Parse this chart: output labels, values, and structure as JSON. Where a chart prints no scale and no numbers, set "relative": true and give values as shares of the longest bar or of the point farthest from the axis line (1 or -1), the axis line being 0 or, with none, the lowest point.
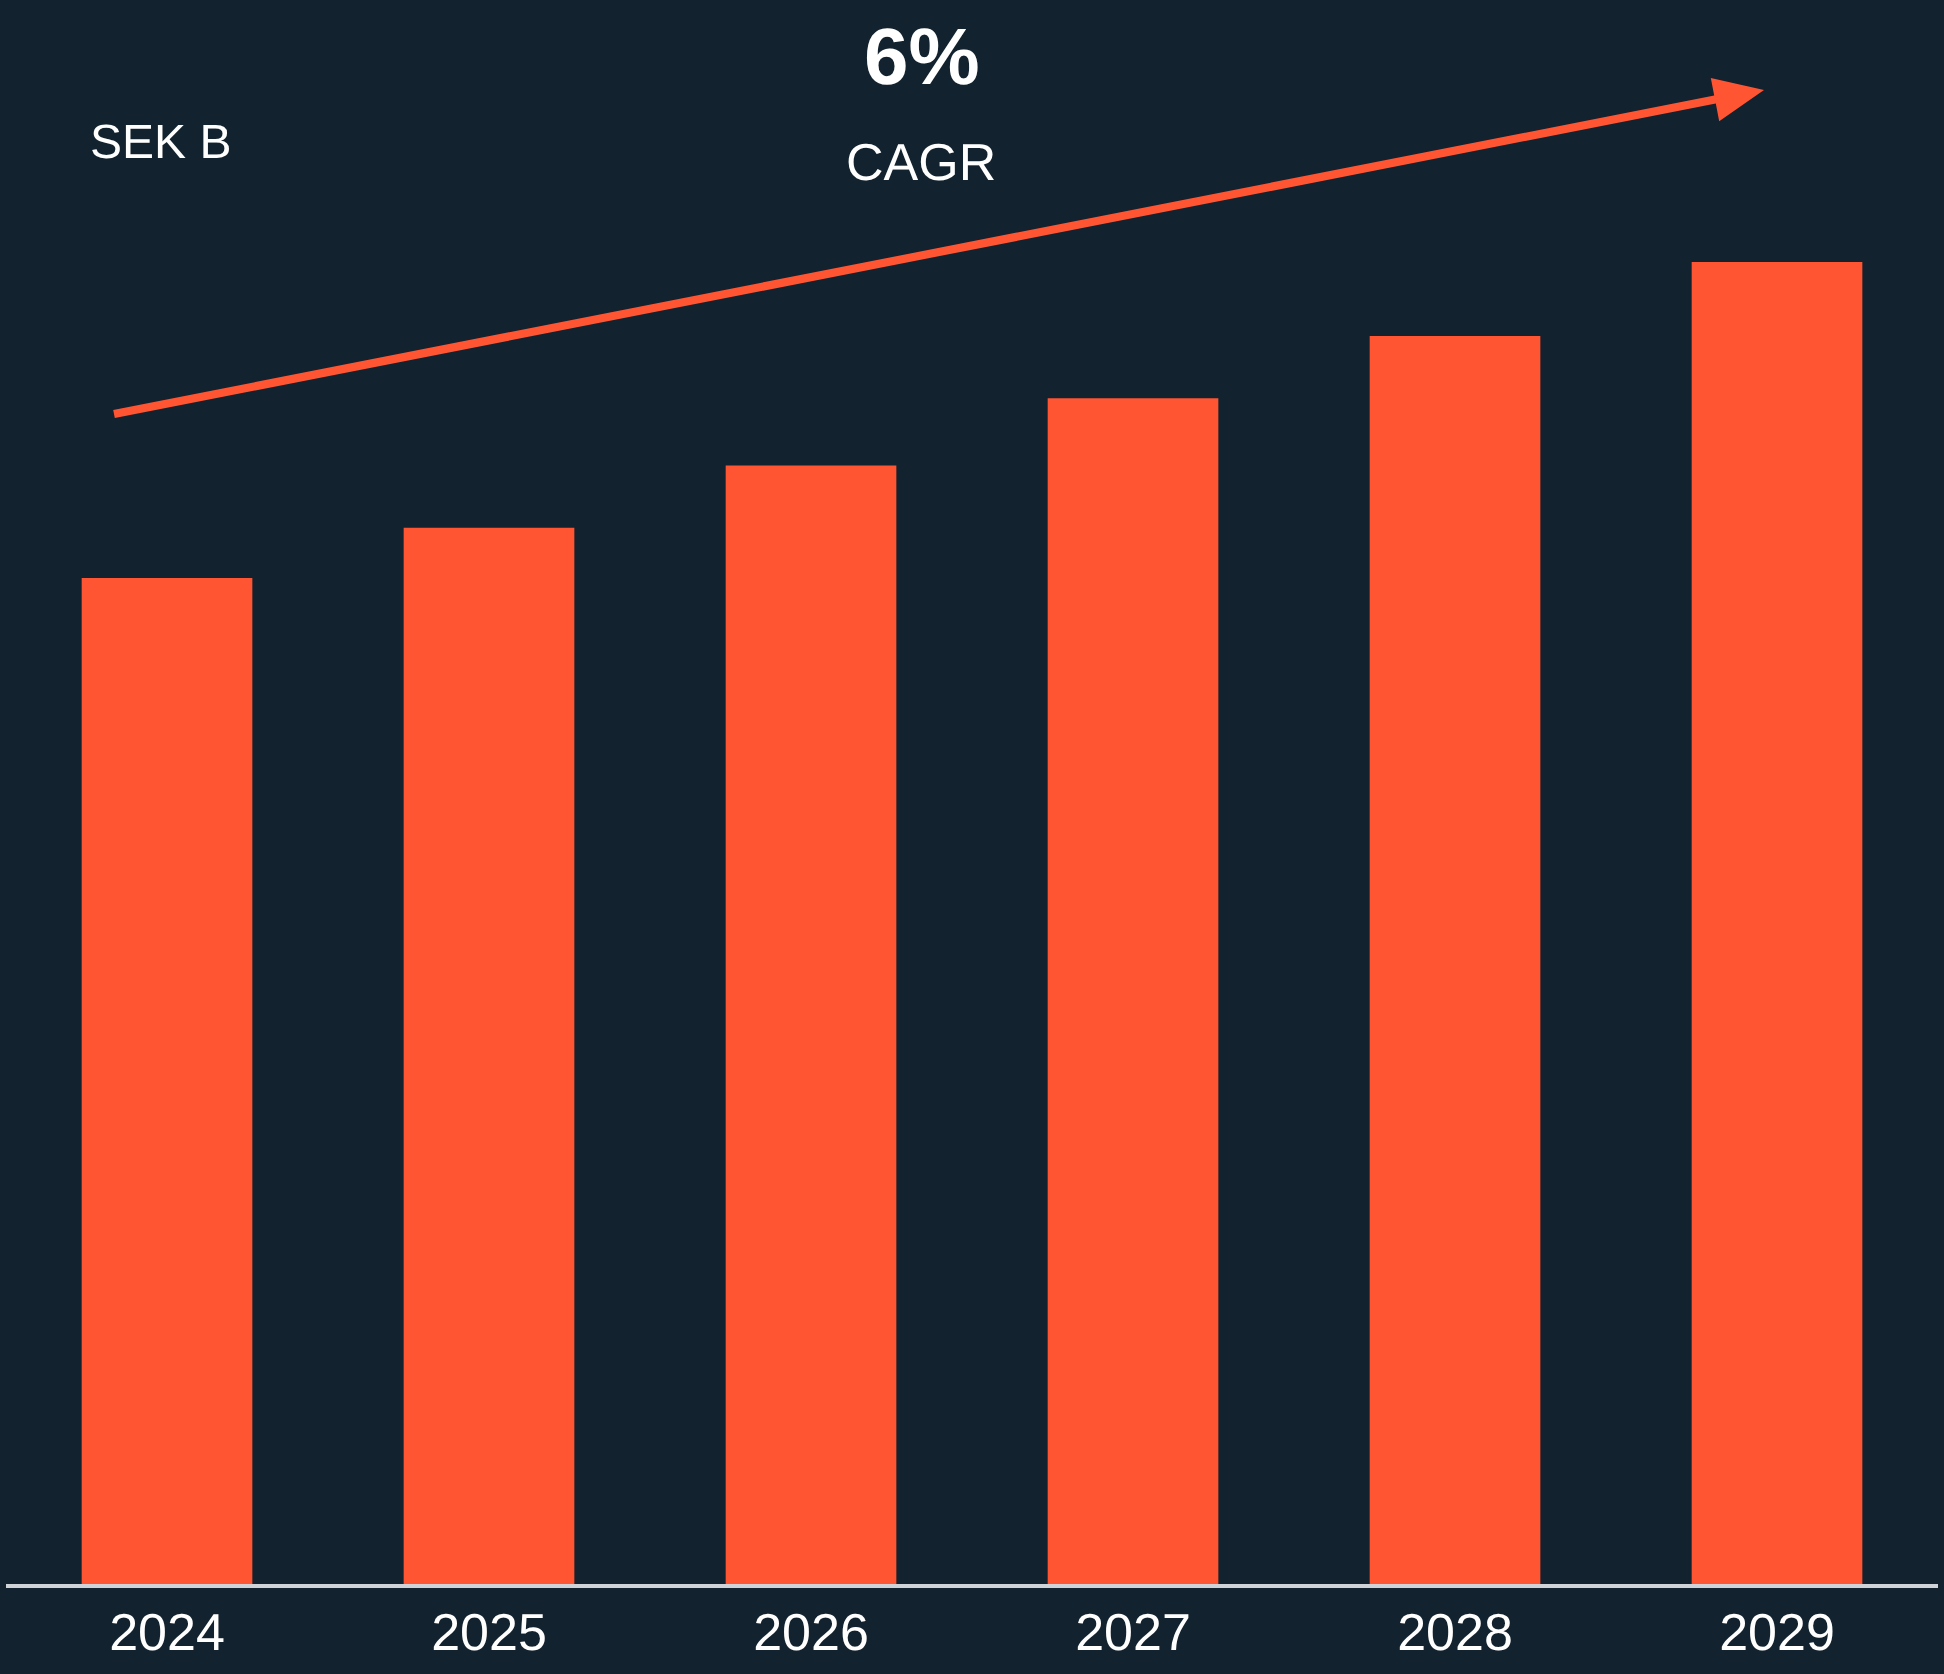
{
  "chart_data": {
    "type": "bar",
    "relative": true,
    "categories": [
      "2024",
      "2025",
      "2026",
      "2027",
      "2028",
      "2029"
    ],
    "values": [
      0.761,
      0.799,
      0.846,
      0.897,
      0.944,
      1
    ],
    "color": "#ff5533",
    "annotations": [
      "SEK B",
      "6%",
      "CAGR"
    ]
  }
}
